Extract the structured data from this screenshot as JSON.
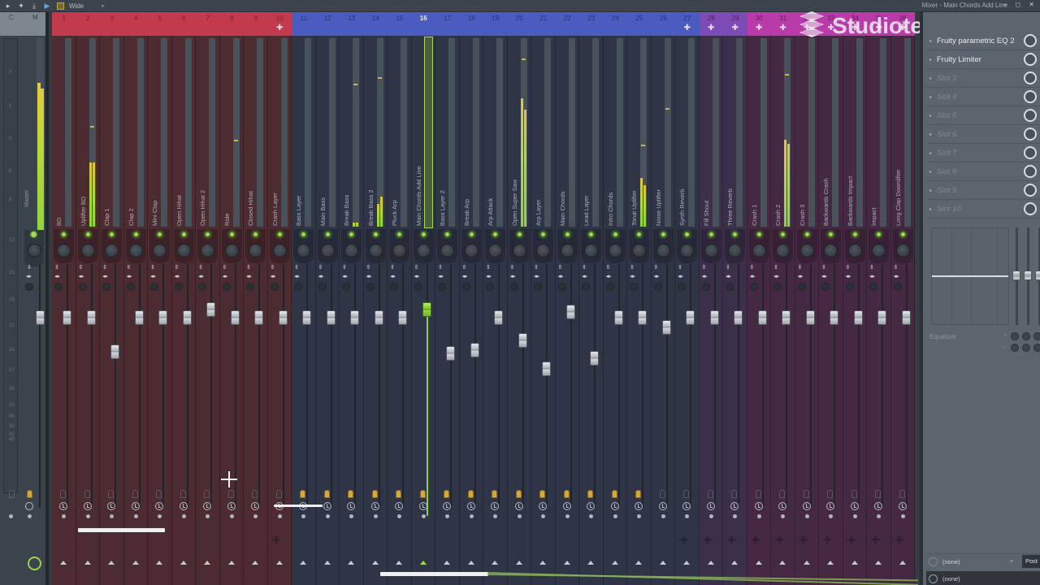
{
  "toolbar": {
    "icons": [
      "play-arrow-icon",
      "mixer-dog-icon",
      "export-icon",
      "playhead-flag-icon",
      "layout-box-icon"
    ],
    "view_mode": "Wide",
    "view_arrow": "▸",
    "window_title": "Mixer - Main Chords Add Line",
    "window_buttons": "– ◻ ✕"
  },
  "master": {
    "header_c": "C",
    "header_m": "M",
    "label": "Master",
    "db_scale": [
      "3",
      "0",
      "3",
      "6",
      "9",
      "12",
      "15",
      "18",
      "21",
      "24",
      "27",
      "30",
      "33",
      "36",
      "39",
      "42",
      "45"
    ],
    "meter_levels": [
      78,
      75
    ]
  },
  "colors": {
    "red_header": "#c23a4b",
    "red_body": "#4c2b31",
    "blue_header": "#4b5cc0",
    "blue_body": "#2f3446",
    "purple_header": "#7d4bb6",
    "purple_body": "#3b2f4a",
    "magenta_header": "#b93ba9",
    "magenta_body": "#452842",
    "meter_green": "#8cd43a",
    "meter_yellow": "#e0c43c",
    "selected_green": "#8ed04c"
  },
  "tracks": [
    {
      "num": "1",
      "name": "BD",
      "group": "red",
      "meter": [
        0,
        0
      ],
      "fader": 382,
      "bulb": "off",
      "cross": false
    },
    {
      "num": "2",
      "name": "Uplifter BD",
      "group": "red",
      "meter": [
        34,
        34
      ],
      "fader": 382,
      "bulb": "off",
      "cross": false,
      "peak": 140
    },
    {
      "num": "3",
      "name": "Clap 1",
      "group": "red",
      "meter": [
        0,
        0
      ],
      "fader": 424,
      "bulb": "off",
      "cross": false
    },
    {
      "num": "4",
      "name": "Clap 2",
      "group": "red",
      "meter": [
        0,
        0
      ],
      "fader": 382,
      "bulb": "off",
      "cross": false
    },
    {
      "num": "5",
      "name": "Mini Clap",
      "group": "red",
      "meter": [
        0,
        0
      ],
      "fader": 382,
      "bulb": "off",
      "cross": false
    },
    {
      "num": "6",
      "name": "Open Hihat",
      "group": "red",
      "meter": [
        0,
        0
      ],
      "fader": 382,
      "bulb": "off",
      "cross": false
    },
    {
      "num": "7",
      "name": "Open Hihat 2",
      "group": "red",
      "meter": [
        0,
        0
      ],
      "fader": 372,
      "bulb": "off",
      "cross": false
    },
    {
      "num": "8",
      "name": "Ride",
      "group": "red",
      "meter": [
        0,
        0
      ],
      "fader": 382,
      "bulb": "off",
      "cross": false,
      "peak": 157
    },
    {
      "num": "9",
      "name": "Closed Hihat",
      "group": "red",
      "meter": [
        0,
        0
      ],
      "fader": 382,
      "bulb": "off",
      "cross": false
    },
    {
      "num": "10",
      "name": "Crash Layer",
      "group": "red",
      "meter": [
        0,
        0
      ],
      "fader": 382,
      "bulb": "off",
      "cross": true
    },
    {
      "num": "11",
      "name": "Bass Layer",
      "group": "blue",
      "meter": [
        0,
        0
      ],
      "fader": 382,
      "bulb": "on",
      "cross": false
    },
    {
      "num": "12",
      "name": "Main Bass",
      "group": "blue",
      "meter": [
        0,
        0
      ],
      "fader": 382,
      "bulb": "on",
      "cross": false
    },
    {
      "num": "13",
      "name": "Break Bass",
      "group": "blue",
      "meter": [
        2,
        2
      ],
      "fader": 382,
      "bulb": "on",
      "cross": false,
      "peak": 88
    },
    {
      "num": "14",
      "name": "Break Bass 2",
      "group": "blue",
      "meter": [
        12,
        16
      ],
      "fader": 382,
      "bulb": "on",
      "cross": false,
      "peak": 80
    },
    {
      "num": "15",
      "name": "Pluck Arp",
      "group": "blue",
      "meter": [
        0,
        0
      ],
      "fader": 382,
      "bulb": "on",
      "cross": false
    },
    {
      "num": "16",
      "name": "Main Chords Add Line",
      "group": "blue",
      "meter": [
        0,
        0
      ],
      "fader": 372,
      "bulb": "on",
      "cross": false,
      "selected": true
    },
    {
      "num": "17",
      "name": "Bass Layer 2",
      "group": "blue",
      "meter": [
        0,
        0
      ],
      "fader": 426,
      "bulb": "on",
      "cross": false
    },
    {
      "num": "18",
      "name": "Break Arp",
      "group": "blue",
      "meter": [
        0,
        0
      ],
      "fader": 422,
      "bulb": "on",
      "cross": false
    },
    {
      "num": "19",
      "name": "Arp Attack",
      "group": "blue",
      "meter": [
        0,
        0
      ],
      "fader": 382,
      "bulb": "on",
      "cross": false
    },
    {
      "num": "20",
      "name": "Open Super Saw",
      "group": "blue",
      "meter": [
        68,
        62
      ],
      "fader": 410,
      "bulb": "on",
      "cross": false,
      "peak": 57
    },
    {
      "num": "21",
      "name": "Arp Layer",
      "group": "blue",
      "meter": [
        0,
        0
      ],
      "fader": 445,
      "bulb": "on",
      "cross": false
    },
    {
      "num": "22",
      "name": "Main Chords",
      "group": "blue",
      "meter": [
        0,
        0
      ],
      "fader": 375,
      "bulb": "on",
      "cross": false
    },
    {
      "num": "23",
      "name": "Lead Layer",
      "group": "blue",
      "meter": [
        0,
        0
      ],
      "fader": 432,
      "bulb": "on",
      "cross": false
    },
    {
      "num": "24",
      "name": "Intro Chords",
      "group": "blue",
      "meter": [
        0,
        0
      ],
      "fader": 382,
      "bulb": "on",
      "cross": false
    },
    {
      "num": "25",
      "name": "Tonal Uplifter",
      "group": "blue",
      "meter": [
        26,
        22
      ],
      "fader": 382,
      "bulb": "on",
      "cross": false,
      "peak": 163
    },
    {
      "num": "26",
      "name": "Noise Uplifter",
      "group": "blue",
      "meter": [
        0,
        0
      ],
      "fader": 394,
      "bulb": "off",
      "cross": false,
      "peak": 118
    },
    {
      "num": "27",
      "name": "Synth Reverb",
      "group": "blue",
      "meter": [
        0,
        0
      ],
      "fader": 382,
      "bulb": "off",
      "cross": true
    },
    {
      "num": "28",
      "name": "Fill Shout",
      "group": "purple",
      "meter": [
        0,
        0
      ],
      "fader": 382,
      "bulb": "off",
      "cross": true
    },
    {
      "num": "29",
      "name": "Three Reverb",
      "group": "purple",
      "meter": [
        0,
        0
      ],
      "fader": 382,
      "bulb": "off",
      "cross": true
    },
    {
      "num": "30",
      "name": "Crash 1",
      "group": "magenta",
      "meter": [
        0,
        0
      ],
      "fader": 382,
      "bulb": "off",
      "cross": true
    },
    {
      "num": "31",
      "name": "Crash 2",
      "group": "magenta",
      "meter": [
        46,
        44
      ],
      "fader": 382,
      "bulb": "off",
      "cross": true,
      "peak": 76
    },
    {
      "num": "32",
      "name": "Crash 3",
      "group": "magenta",
      "meter": [
        0,
        0
      ],
      "fader": 382,
      "bulb": "off",
      "cross": true
    },
    {
      "num": "33",
      "name": "Backwards Crash",
      "group": "magenta",
      "meter": [
        0,
        0
      ],
      "fader": 382,
      "bulb": "off",
      "cross": true
    },
    {
      "num": "34",
      "name": "Backwards Impact",
      "group": "magenta",
      "meter": [
        0,
        0
      ],
      "fader": 382,
      "bulb": "off",
      "cross": true
    },
    {
      "num": "35",
      "name": "Impact",
      "group": "magenta",
      "meter": [
        0,
        0
      ],
      "fader": 382,
      "bulb": "off",
      "cross": true
    },
    {
      "num": "36",
      "name": "Long Clap Downlifter",
      "group": "magenta",
      "meter": [
        0,
        0
      ],
      "fader": 382,
      "bulb": "off",
      "cross": true
    }
  ],
  "effects_panel": {
    "slots": [
      {
        "name": "Fruity parametric EQ 2",
        "filled": true
      },
      {
        "name": "Fruity Limiter",
        "filled": true
      },
      {
        "name": "Slot 3",
        "filled": false
      },
      {
        "name": "Slot 4",
        "filled": false
      },
      {
        "name": "Slot 5",
        "filled": false
      },
      {
        "name": "Slot 6",
        "filled": false
      },
      {
        "name": "Slot 7",
        "filled": false
      },
      {
        "name": "Slot 8",
        "filled": false
      },
      {
        "name": "Slot 9",
        "filled": false
      },
      {
        "name": "Slot 10",
        "filled": false
      }
    ],
    "eq_label": "Equalizer",
    "input_routing": "(none)",
    "output_routing": "(none)",
    "post_label": "Post",
    "post_arrow": "▸"
  },
  "watermark": {
    "text": "Studiotemplates"
  }
}
